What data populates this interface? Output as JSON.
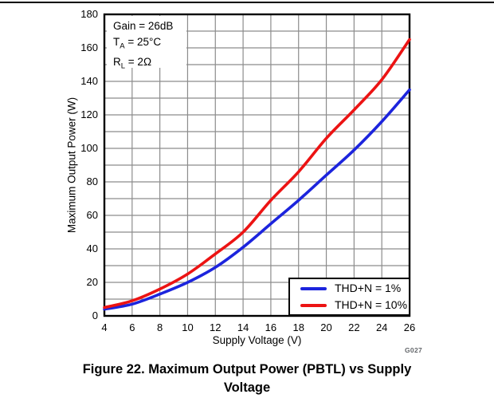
{
  "figure": {
    "caption_lines": [
      "Figure 22. Maximum Output Power (PBTL) vs Supply",
      "Voltage"
    ],
    "plot_code": "G027"
  },
  "annotation": {
    "line1": "Gain = 26dB",
    "line2_base": "T",
    "line2_sub": "A",
    "line2_rest": " = 25°C",
    "line3_base": "R",
    "line3_sub": "L",
    "line3_rest": " = 2Ω"
  },
  "chart_data": {
    "type": "line",
    "title": "Maximum Output Power (PBTL) vs Supply Voltage",
    "xlabel": "Supply Voltage (V)",
    "ylabel": "Maximum Output Power (W)",
    "x": [
      4,
      6,
      8,
      10,
      12,
      14,
      16,
      18,
      20,
      22,
      24,
      26
    ],
    "series": [
      {
        "name": "THD+N = 1%",
        "color": "#1c24dd",
        "values": [
          4,
          7,
          13,
          20,
          29,
          41,
          55,
          69,
          84,
          99,
          116,
          135
        ]
      },
      {
        "name": "THD+N = 10%",
        "color": "#ec1313",
        "values": [
          5,
          9,
          16,
          25,
          37,
          50,
          69,
          86,
          106,
          123,
          141,
          165
        ]
      }
    ],
    "xlim": [
      4,
      26
    ],
    "ylim": [
      0,
      180
    ],
    "x_ticks": [
      4,
      6,
      8,
      10,
      12,
      14,
      16,
      18,
      20,
      22,
      24,
      26
    ],
    "y_ticks": [
      0,
      20,
      40,
      60,
      80,
      100,
      120,
      140,
      160,
      180
    ],
    "x_grid_step": 2,
    "y_grid_step": 10,
    "grid": true,
    "grid_color": "#8c8c8c",
    "frame_color": "#000000",
    "legend_position": "bottom-right"
  }
}
